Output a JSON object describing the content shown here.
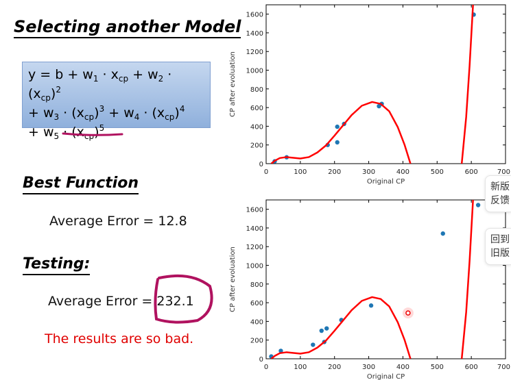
{
  "slide": {
    "title": "Selecting another Model",
    "formula_lines": [
      [
        "y = b + w",
        "1",
        " · x",
        "cp",
        " + w",
        "2",
        " · (x",
        "cp",
        ")",
        "2"
      ],
      [
        "+ w",
        "3",
        " · (x",
        "cp",
        ")",
        "3",
        " + w",
        "4",
        " · (x",
        "cp",
        ")",
        "4"
      ],
      [
        "+ w",
        "5",
        " · (x",
        "cp",
        ")",
        "5"
      ]
    ],
    "best_function": "Best Function",
    "training_error": "Average Error = 12.8",
    "testing": "Testing:",
    "testing_error_label": "Average Error = ",
    "testing_error_value": "232.1",
    "verdict": "The results are so bad.",
    "annotation_color": "#b0125f",
    "verdict_color": "#e00000"
  },
  "side_popups": [
    {
      "line1": "新版",
      "line2": "反馈"
    },
    {
      "line1": "回到",
      "line2": "旧版"
    }
  ],
  "chart_data": [
    {
      "type": "scatter",
      "xlabel": "Original CP",
      "ylabel": "CP after evoluation",
      "xlim": [
        0,
        700
      ],
      "ylim": [
        0,
        1700
      ],
      "xticks": [
        0,
        100,
        200,
        300,
        400,
        500,
        600,
        700
      ],
      "yticks": [
        0,
        200,
        400,
        600,
        800,
        1000,
        1200,
        1400,
        1600
      ],
      "point_color": "#1f77b4",
      "curve_color": "#ff0000",
      "points": [
        [
          25,
          25
        ],
        [
          60,
          68
        ],
        [
          180,
          200
        ],
        [
          208,
          395
        ],
        [
          208,
          228
        ],
        [
          228,
          425
        ],
        [
          330,
          615
        ],
        [
          338,
          640
        ],
        [
          607,
          1595
        ]
      ],
      "curve": [
        [
          [
            15,
            0
          ],
          [
            25,
            30
          ],
          [
            40,
            60
          ],
          [
            60,
            70
          ],
          [
            80,
            62
          ],
          [
            100,
            55
          ],
          [
            125,
            70
          ],
          [
            150,
            120
          ],
          [
            175,
            195
          ],
          [
            200,
            300
          ],
          [
            225,
            410
          ],
          [
            250,
            520
          ],
          [
            280,
            620
          ],
          [
            310,
            660
          ],
          [
            335,
            640
          ],
          [
            360,
            560
          ],
          [
            385,
            390
          ],
          [
            405,
            200
          ],
          [
            422,
            0
          ]
        ],
        [
          [
            572,
            0
          ],
          [
            585,
            500
          ],
          [
            595,
            1050
          ],
          [
            605,
            1700
          ]
        ]
      ]
    },
    {
      "type": "scatter",
      "xlabel": "Original CP",
      "ylabel": "CP after evoluation",
      "xlim": [
        0,
        700
      ],
      "ylim": [
        0,
        1700
      ],
      "xticks": [
        0,
        100,
        200,
        300,
        400,
        500,
        600,
        700
      ],
      "yticks": [
        0,
        200,
        400,
        600,
        800,
        1000,
        1200,
        1400,
        1600
      ],
      "point_color": "#1f77b4",
      "curve_color": "#ff0000",
      "points": [
        [
          15,
          25
        ],
        [
          43,
          85
        ],
        [
          137,
          150
        ],
        [
          162,
          300
        ],
        [
          170,
          180
        ],
        [
          177,
          325
        ],
        [
          220,
          415
        ],
        [
          307,
          570
        ],
        [
          517,
          1340
        ],
        [
          620,
          1645
        ]
      ],
      "highlight_point": [
        415,
        490
      ],
      "curve": [
        [
          [
            15,
            0
          ],
          [
            25,
            30
          ],
          [
            40,
            60
          ],
          [
            60,
            70
          ],
          [
            80,
            62
          ],
          [
            100,
            55
          ],
          [
            125,
            70
          ],
          [
            150,
            120
          ],
          [
            175,
            195
          ],
          [
            200,
            300
          ],
          [
            225,
            410
          ],
          [
            250,
            520
          ],
          [
            280,
            620
          ],
          [
            310,
            660
          ],
          [
            335,
            640
          ],
          [
            360,
            560
          ],
          [
            385,
            390
          ],
          [
            405,
            200
          ],
          [
            422,
            0
          ]
        ],
        [
          [
            572,
            0
          ],
          [
            585,
            500
          ],
          [
            595,
            1050
          ],
          [
            605,
            1700
          ]
        ]
      ]
    }
  ]
}
